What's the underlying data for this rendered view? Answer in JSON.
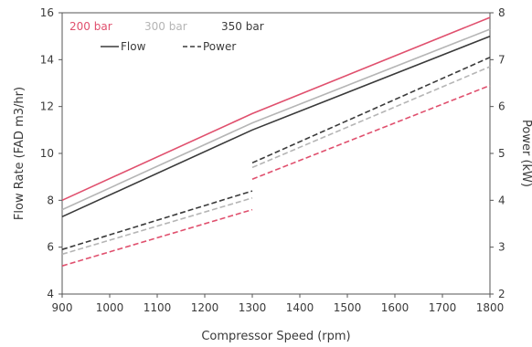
{
  "chart_data": {
    "type": "line",
    "title": "",
    "xlabel": "Compressor Speed (rpm)",
    "ylabel": "Flow Rate (FAD m3/hr)",
    "y2label": "Power (kW)",
    "xlim": [
      900,
      1800
    ],
    "ylim": [
      4,
      16
    ],
    "y2lim": [
      2,
      8
    ],
    "xticks": [
      900,
      1000,
      1100,
      1200,
      1300,
      1400,
      1500,
      1600,
      1700,
      1800
    ],
    "yticks": [
      4,
      6,
      8,
      10,
      12,
      14,
      16
    ],
    "y2ticks": [
      2,
      3,
      4,
      5,
      6,
      7,
      8
    ],
    "grid": false,
    "legend_pressures": [
      {
        "label": "200 bar",
        "color": "#e0506e"
      },
      {
        "label": "300 bar",
        "color": "#b5b5b5"
      },
      {
        "label": "350 bar",
        "color": "#3a3a3a"
      }
    ],
    "legend_styles": [
      {
        "label": "Flow",
        "dash": "solid"
      },
      {
        "label": "Power",
        "dash": "dashed"
      }
    ],
    "series": [
      {
        "pressure": "200 bar",
        "metric": "Flow",
        "axis": "left",
        "color": "#e0506e",
        "dash": "solid",
        "segments": [
          [
            [
              900,
              8.0
            ],
            [
              1300,
              11.7
            ],
            [
              1800,
              15.8
            ]
          ]
        ]
      },
      {
        "pressure": "300 bar",
        "metric": "Flow",
        "axis": "left",
        "color": "#b5b5b5",
        "dash": "solid",
        "segments": [
          [
            [
              900,
              7.6
            ],
            [
              1300,
              11.3
            ],
            [
              1800,
              15.3
            ]
          ]
        ]
      },
      {
        "pressure": "350 bar",
        "metric": "Flow",
        "axis": "left",
        "color": "#3a3a3a",
        "dash": "solid",
        "segments": [
          [
            [
              900,
              7.3
            ],
            [
              1300,
              11.0
            ],
            [
              1800,
              15.0
            ]
          ]
        ]
      },
      {
        "pressure": "200 bar",
        "metric": "Power",
        "axis": "right",
        "color": "#e0506e",
        "dash": "dashed",
        "segments": [
          [
            [
              900,
              2.6
            ],
            [
              1300,
              3.8
            ]
          ],
          [
            [
              1300,
              4.45
            ],
            [
              1800,
              6.45
            ]
          ]
        ]
      },
      {
        "pressure": "300 bar",
        "metric": "Power",
        "axis": "right",
        "color": "#b5b5b5",
        "dash": "dashed",
        "segments": [
          [
            [
              900,
              2.85
            ],
            [
              1300,
              4.05
            ]
          ],
          [
            [
              1300,
              4.7
            ],
            [
              1800,
              6.85
            ]
          ]
        ]
      },
      {
        "pressure": "350 bar",
        "metric": "Power",
        "axis": "right",
        "color": "#3a3a3a",
        "dash": "dashed",
        "segments": [
          [
            [
              900,
              2.95
            ],
            [
              1300,
              4.2
            ]
          ],
          [
            [
              1300,
              4.8
            ],
            [
              1800,
              7.05
            ]
          ]
        ]
      }
    ]
  }
}
